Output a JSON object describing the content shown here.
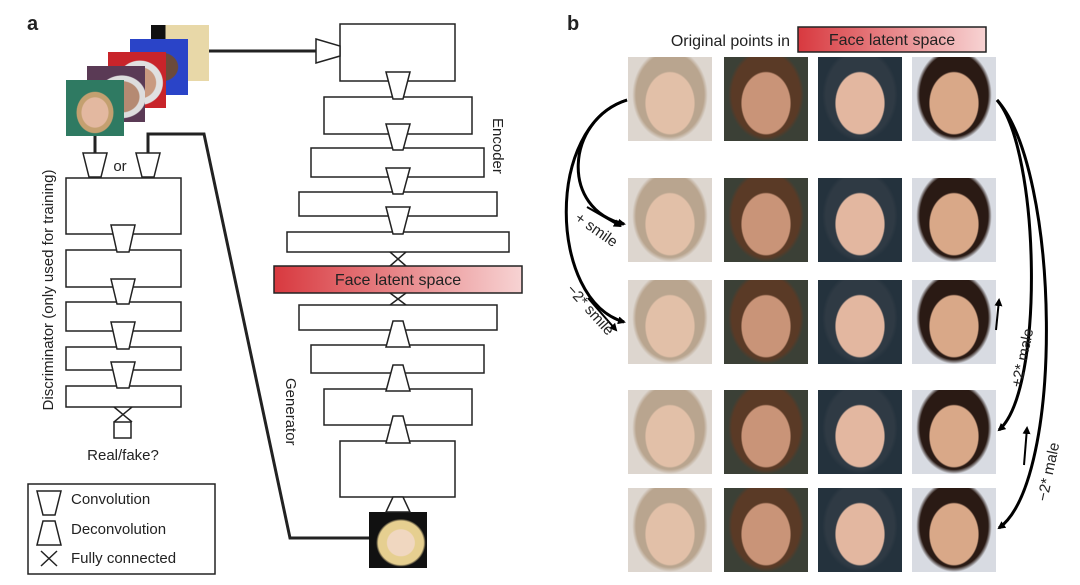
{
  "panel_a": {
    "label": "a",
    "encoder_label": "Encoder",
    "generator_label": "Generator",
    "discriminator_label": "Discriminator (only used for training)",
    "or_label": "or",
    "latent_label": "Face latent space",
    "output_label": "Real/fake?",
    "legend": [
      {
        "icon": "convolution-icon",
        "label": "Convolution"
      },
      {
        "icon": "deconvolution-icon",
        "label": "Deconvolution"
      },
      {
        "icon": "fully-connected-icon",
        "label": "Fully connected"
      }
    ]
  },
  "panel_b": {
    "label": "b",
    "header_text": "Original points in",
    "latent_label": "Face latent space",
    "arrows": {
      "plus_smile": "+ smile",
      "minus_smile": "−2* smile",
      "plus_male": "+2* male",
      "minus_male": "−2* male"
    }
  },
  "colors": {
    "latent_red": "#d8393f",
    "latent_light": "#f7d3d3"
  }
}
